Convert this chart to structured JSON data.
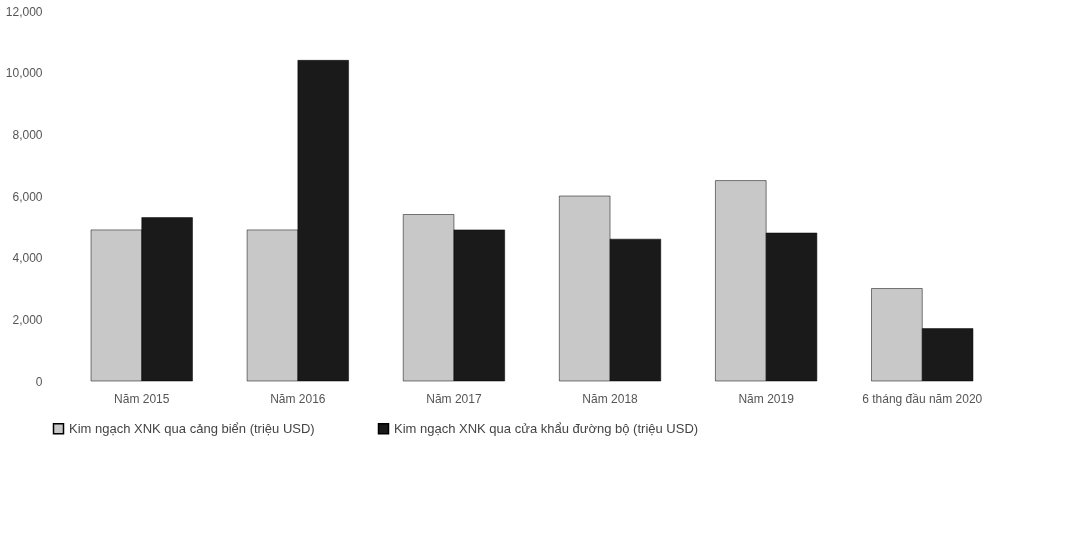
{
  "chart_data": {
    "type": "bar",
    "categories": [
      "Năm 2015",
      "Năm 2016",
      "Năm 2017",
      "Năm 2018",
      "Năm 2019",
      "6 tháng đầu năm 2020"
    ],
    "series": [
      {
        "name": "Kim ngạch XNK qua cảng biển (triệu USD)",
        "color": "#c8c8c8",
        "values": [
          4900,
          4900,
          5400,
          6000,
          6500,
          3000
        ]
      },
      {
        "name": "Kim ngạch XNK qua cửa khẩu đường bộ (triệu USD)",
        "color": "#1a1a1a",
        "values": [
          5300,
          10400,
          4900,
          4600,
          4800,
          1700
        ]
      }
    ],
    "ylim": [
      0,
      12000
    ],
    "yticks": [
      0,
      {
        "value": 2000,
        "label": "2,000"
      },
      {
        "value": 4000,
        "label": "4,000"
      },
      {
        "value": 6000,
        "label": "6,000"
      },
      {
        "value": 8000,
        "label": "8,000"
      },
      {
        "value": 10000,
        "label": "10,000"
      },
      {
        "value": 12000,
        "label": "12,000"
      }
    ],
    "grid": false,
    "legend": "bottom"
  }
}
